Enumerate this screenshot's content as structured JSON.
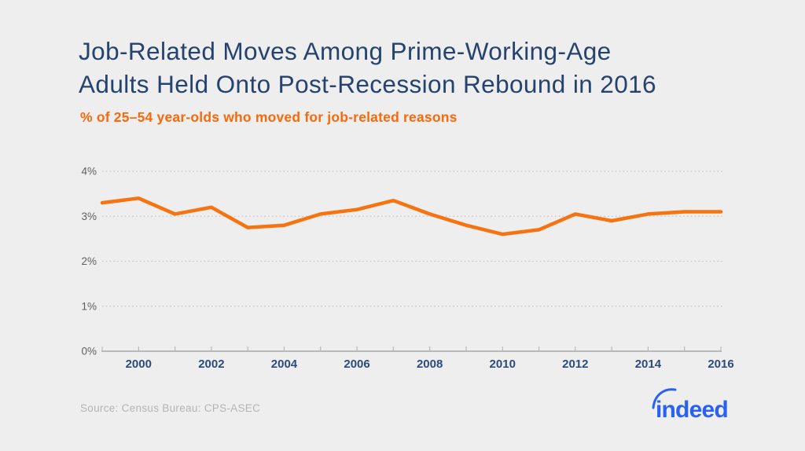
{
  "page": {
    "title_lines": [
      "Job-Related Moves Among Prime-Working-Age",
      "Adults Held Onto Post-Recession Rebound in 2016"
    ],
    "subtitle": "% of 25–54 year-olds who moved for job-related reasons",
    "source": "Source: Census Bureau: CPS-ASEC",
    "logo_text": "indeed"
  },
  "colors": {
    "background": "#eeeeee",
    "title_navy": "#25436e",
    "subtitle_orange": "#f8690a",
    "line_orange": "#f7730f",
    "axis_label_blue": "#2c4b7c",
    "y_label_gray": "#5f5f5f",
    "gridline_gray": "#c5c5c5",
    "axis_gray": "#b9b9b9",
    "source_gray": "#b4b4b4",
    "indeed_blue": "#2961f2"
  },
  "chart_data": {
    "type": "line",
    "title": "Job-Related Moves Among Prime-Working-Age Adults Held Onto Post-Recession Rebound in 2016",
    "subtitle": "% of 25–54 year-olds who moved for job-related reasons",
    "series_name": "% of 25-54 year-olds who moved for job-related reasons",
    "x": [
      1999,
      2000,
      2001,
      2002,
      2003,
      2004,
      2005,
      2006,
      2007,
      2008,
      2009,
      2010,
      2011,
      2012,
      2013,
      2014,
      2015,
      2016
    ],
    "values": [
      3.3,
      3.4,
      3.05,
      3.2,
      2.75,
      2.8,
      3.05,
      3.15,
      3.35,
      3.05,
      2.8,
      2.6,
      2.7,
      3.05,
      2.9,
      3.05,
      3.1,
      3.1
    ],
    "xlim": [
      1999,
      2016
    ],
    "ylim": [
      0,
      4
    ],
    "y_ticks": [
      0,
      1,
      2,
      3,
      4
    ],
    "y_tick_labels": [
      "0%",
      "1%",
      "2%",
      "3%",
      "4%"
    ],
    "x_ticks": [
      2000,
      2002,
      2004,
      2006,
      2008,
      2010,
      2012,
      2014,
      2016
    ],
    "x_tick_labels": [
      "2000",
      "2002",
      "2004",
      "2006",
      "2008",
      "2010",
      "2012",
      "2014",
      "2016"
    ],
    "grid": "horizontal-dotted",
    "legend": "none",
    "line_color": "#f7730f"
  }
}
